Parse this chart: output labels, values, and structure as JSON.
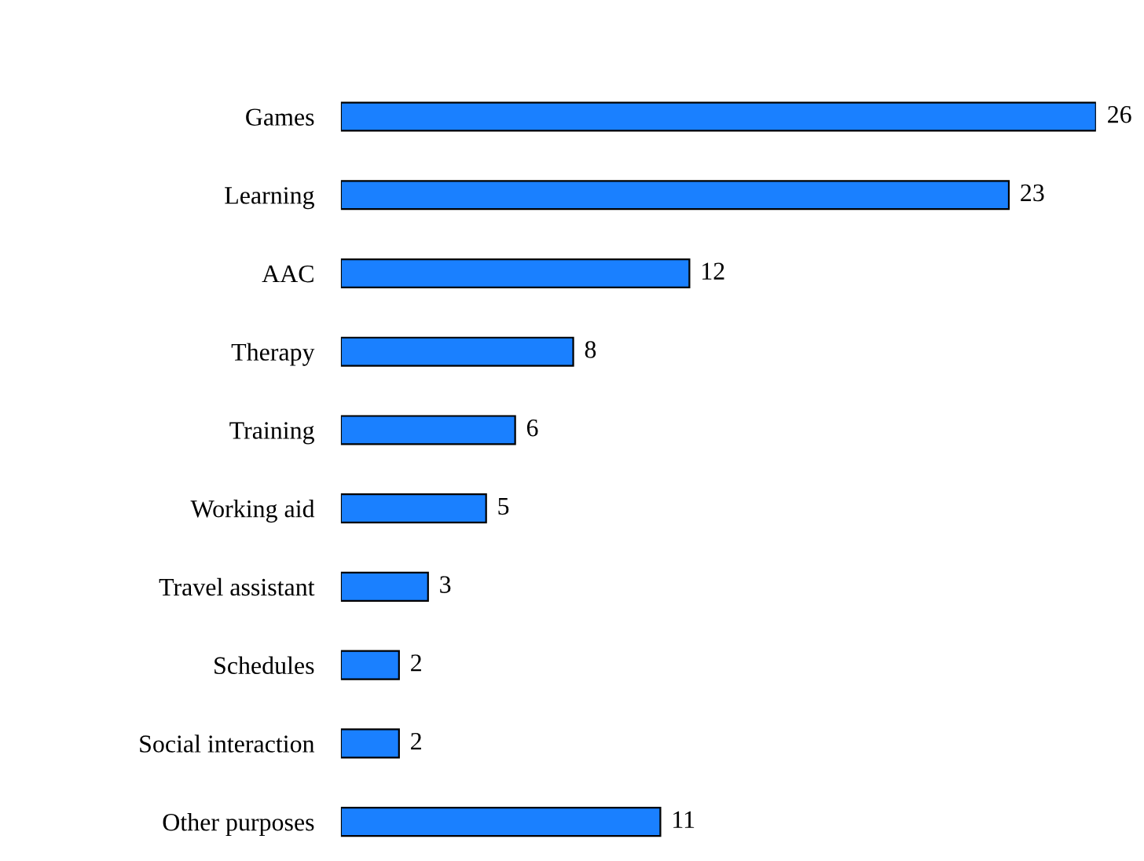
{
  "chart_data": {
    "type": "bar",
    "orientation": "horizontal",
    "categories": [
      "Games",
      "Learning",
      "AAC",
      "Therapy",
      "Training",
      "Working aid",
      "Travel assistant",
      "Schedules",
      "Social interaction",
      "Other purposes"
    ],
    "values": [
      26,
      23,
      12,
      8,
      6,
      5,
      3,
      2,
      2,
      11
    ],
    "color": "#1a80ff",
    "data_labels": true,
    "grid": false,
    "legend": false
  }
}
